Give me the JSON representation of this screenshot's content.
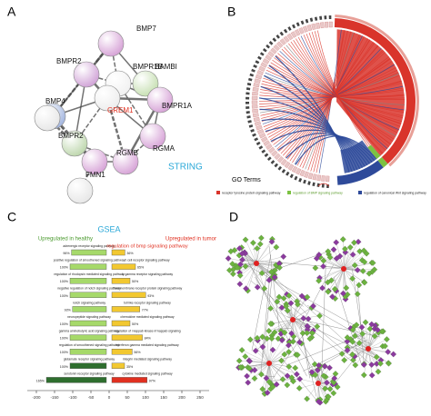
{
  "panel_a": {
    "label": "A",
    "nodes": [
      "BMP7",
      "BMPR1B",
      "BAMBI",
      "BMPR2",
      "BMP4",
      "GREM1",
      "BMPR1A",
      "BMPR2",
      "RGMA",
      "RGMB",
      "FMN1"
    ],
    "caption": "STRING"
  },
  "panel_b": {
    "label": "B",
    "legend_title": "GO Terms",
    "legend": [
      {
        "name": "receptor tyrosine protein signaling pathway",
        "color": "#d9342b"
      },
      {
        "name": "regulation of BMP signaling pathway",
        "color": "#7cc242"
      },
      {
        "name": "regulation of canonical Wnt signaling pathway",
        "color": "#2e4a9a"
      }
    ]
  },
  "chart_data": {
    "type": "bar",
    "label": "C",
    "title": "GSEA",
    "xlim": [
      -225,
      275
    ],
    "xticks": [
      -200,
      -150,
      -100,
      -50,
      0,
      50,
      100,
      150,
      200,
      250
    ],
    "series": [
      {
        "name": "Upregulated in healthy",
        "color": "#4a9a2e",
        "side": "left",
        "categories": [
          "adrenergic receptor signaling pathway",
          "positive regulation of smoothened signaling pathway",
          "regulation of rhodopsin mediated signaling pathway",
          "negative regulation of notch signaling pathway",
          "notch signaling pathway",
          "neuropeptide signaling pathway",
          "gamma aminobutyric acid signaling pathway",
          "regulation of smoothened signaling pathway",
          "glutamate receptor signaling pathway",
          "serotonin receptor signaling pathway"
        ],
        "values": [
          96,
          100,
          100,
          100,
          93,
          100,
          100,
          100,
          100,
          165
        ],
        "value_labels": [
          "96%",
          "100%",
          "100%",
          "100%",
          "93%",
          "100%",
          "100%",
          "100%",
          "100%",
          "165%"
        ],
        "colors": [
          "#a6d96a",
          "#a6d96a",
          "#a6d96a",
          "#a6d96a",
          "#a6d96a",
          "#a6d96a",
          "#a6d96a",
          "#a6d96a",
          "#2e6e2e",
          "#2e6e2e"
        ]
      },
      {
        "name": "Upregulated in tumor",
        "color": "#e03020",
        "side": "right",
        "categories": [
          "regulation of bmp signaling pathway",
          "b cell receptor signaling pathway",
          "fc gamma receptor signaling pathway",
          "transmembrane receptor protein signaling pathway",
          "toll like receptor signaling pathway",
          "chemokine mediated signaling pathway",
          "regulation of i kappab kinase nf kappab signaling",
          "interferon gamma mediated signaling pathway",
          "integrin mediated signaling pathway",
          "cytokine mediated signaling pathway"
        ],
        "values": [
          36,
          65,
          50,
          93,
          77,
          50,
          84,
          56,
          35,
          97
        ],
        "value_labels": [
          "36%",
          "65%",
          "50%",
          "93%",
          "77%",
          "50%",
          "84%",
          "56%",
          "35%",
          "97%"
        ],
        "colors": [
          "#f2c830",
          "#f2c830",
          "#f2c830",
          "#f2c830",
          "#f2c830",
          "#f2c830",
          "#f2c830",
          "#f2c830",
          "#f2c830",
          "#e03020"
        ]
      }
    ]
  },
  "panel_d": {
    "label": "D"
  }
}
